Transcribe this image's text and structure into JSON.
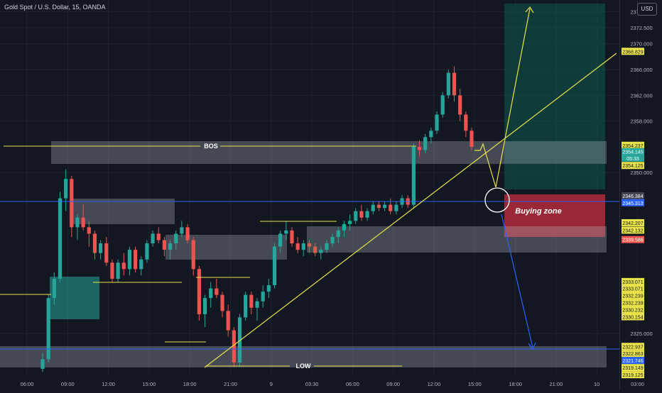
{
  "header": {
    "symbol_title": "Gold Spot / U.S. Dollar, 15, OANDA",
    "currency": "USD"
  },
  "colors": {
    "background": "#131722",
    "grid": "#1f2330",
    "candle_up": "#26a69a",
    "candle_down": "#ef5350",
    "zone_gray": "#b2b5be",
    "annotation_yellow": "#e8e34a",
    "annotation_blue": "#2962ff",
    "target_zone": "#0d5b50",
    "buying_zone": "#b22a3a"
  },
  "chart_data": {
    "type": "candlestick",
    "instrument": "Gold Spot / U.S. Dollar",
    "timeframe": "15",
    "source": "OANDA",
    "ylim": [
      2318.4,
      2376.8
    ],
    "y_ticks": [
      2375.0,
      2372.5,
      2370.0,
      2366.0,
      2362.0,
      2358.0,
      2350.0,
      2325.0
    ],
    "x_ticks": [
      "06:00",
      "09:00",
      "12:00",
      "15:00",
      "18:00",
      "21:00",
      "9",
      "03:30",
      "06:00",
      "09:00",
      "12:00",
      "15:00",
      "18:00",
      "21:00",
      "10",
      "03:00"
    ],
    "candles": [
      [
        2319.5,
        2322.0,
        2319.0,
        2321.0
      ],
      [
        2321.0,
        2331.0,
        2320.5,
        2330.5
      ],
      [
        2330.5,
        2334.5,
        2329.5,
        2333.5
      ],
      [
        2333.5,
        2347.0,
        2333.0,
        2346.0
      ],
      [
        2346.0,
        2350.5,
        2344.0,
        2349.0
      ],
      [
        2349.0,
        2349.5,
        2340.0,
        2341.5
      ],
      [
        2341.5,
        2343.5,
        2339.5,
        2343.0
      ],
      [
        2343.0,
        2345.0,
        2341.0,
        2341.5
      ],
      [
        2341.5,
        2342.5,
        2338.5,
        2340.5
      ],
      [
        2340.5,
        2341.0,
        2336.5,
        2337.5
      ],
      [
        2337.5,
        2339.5,
        2336.5,
        2339.0
      ],
      [
        2339.0,
        2340.0,
        2335.5,
        2336.0
      ],
      [
        2336.0,
        2336.5,
        2333.0,
        2333.5
      ],
      [
        2333.5,
        2336.5,
        2333.0,
        2336.0
      ],
      [
        2336.0,
        2337.5,
        2334.0,
        2335.0
      ],
      [
        2335.0,
        2338.5,
        2334.0,
        2338.0
      ],
      [
        2338.0,
        2338.5,
        2334.5,
        2335.0
      ],
      [
        2335.0,
        2337.0,
        2334.0,
        2336.5
      ],
      [
        2336.5,
        2339.5,
        2336.0,
        2339.0
      ],
      [
        2339.0,
        2341.0,
        2338.5,
        2340.5
      ],
      [
        2340.5,
        2341.5,
        2339.0,
        2339.5
      ],
      [
        2339.5,
        2340.0,
        2337.0,
        2338.0
      ],
      [
        2338.0,
        2339.5,
        2336.5,
        2339.0
      ],
      [
        2339.0,
        2341.0,
        2338.0,
        2340.5
      ],
      [
        2340.5,
        2342.5,
        2340.0,
        2341.5
      ],
      [
        2341.5,
        2342.0,
        2339.0,
        2339.5
      ],
      [
        2339.5,
        2340.0,
        2334.0,
        2335.0
      ],
      [
        2335.0,
        2335.5,
        2327.0,
        2328.0
      ],
      [
        2328.0,
        2331.0,
        2326.0,
        2330.5
      ],
      [
        2330.5,
        2333.0,
        2329.0,
        2332.0
      ],
      [
        2332.0,
        2333.5,
        2330.5,
        2331.0
      ],
      [
        2331.0,
        2331.5,
        2327.5,
        2328.5
      ],
      [
        2328.5,
        2329.5,
        2324.5,
        2325.5
      ],
      [
        2325.5,
        2326.0,
        2320.0,
        2320.5
      ],
      [
        2320.5,
        2328.0,
        2320.0,
        2327.5
      ],
      [
        2327.5,
        2331.5,
        2327.0,
        2331.0
      ],
      [
        2331.0,
        2331.5,
        2328.0,
        2329.0
      ],
      [
        2329.0,
        2330.5,
        2327.0,
        2330.0
      ],
      [
        2330.0,
        2332.5,
        2329.0,
        2331.5
      ],
      [
        2331.5,
        2333.5,
        2330.5,
        2332.5
      ],
      [
        2332.5,
        2339.0,
        2332.0,
        2338.5
      ],
      [
        2338.5,
        2341.0,
        2337.5,
        2340.5
      ],
      [
        2340.5,
        2342.5,
        2339.5,
        2341.0
      ],
      [
        2341.0,
        2341.5,
        2338.5,
        2339.0
      ],
      [
        2339.0,
        2340.0,
        2337.5,
        2338.0
      ],
      [
        2338.0,
        2339.5,
        2337.0,
        2339.0
      ],
      [
        2339.0,
        2339.5,
        2337.5,
        2338.5
      ],
      [
        2338.5,
        2339.0,
        2337.0,
        2337.5
      ],
      [
        2337.5,
        2338.5,
        2336.5,
        2338.0
      ],
      [
        2338.0,
        2339.5,
        2337.5,
        2339.0
      ],
      [
        2339.0,
        2340.5,
        2338.5,
        2340.0
      ],
      [
        2340.0,
        2341.5,
        2339.0,
        2341.0
      ],
      [
        2341.0,
        2342.5,
        2340.0,
        2342.0
      ],
      [
        2342.0,
        2343.5,
        2341.0,
        2342.5
      ],
      [
        2342.5,
        2344.5,
        2342.0,
        2344.0
      ],
      [
        2344.0,
        2345.0,
        2342.5,
        2343.0
      ],
      [
        2343.0,
        2344.5,
        2342.5,
        2344.0
      ],
      [
        2344.0,
        2345.5,
        2343.5,
        2345.0
      ],
      [
        2345.0,
        2345.5,
        2344.0,
        2344.5
      ],
      [
        2344.5,
        2345.5,
        2344.0,
        2345.0
      ],
      [
        2345.0,
        2346.0,
        2343.5,
        2344.0
      ],
      [
        2344.0,
        2345.5,
        2343.5,
        2345.0
      ],
      [
        2345.0,
        2346.5,
        2344.5,
        2346.0
      ],
      [
        2346.0,
        2346.5,
        2344.5,
        2345.0
      ],
      [
        2345.0,
        2354.5,
        2344.5,
        2354.0
      ],
      [
        2354.0,
        2355.0,
        2352.5,
        2353.5
      ],
      [
        2353.5,
        2356.0,
        2353.0,
        2355.5
      ],
      [
        2355.5,
        2357.0,
        2354.5,
        2356.5
      ],
      [
        2356.5,
        2359.5,
        2356.0,
        2359.0
      ],
      [
        2359.0,
        2362.5,
        2358.5,
        2362.0
      ],
      [
        2362.0,
        2366.0,
        2361.5,
        2365.5
      ],
      [
        2365.5,
        2366.5,
        2361.0,
        2362.0
      ],
      [
        2362.0,
        2363.0,
        2358.0,
        2359.0
      ],
      [
        2359.0,
        2359.5,
        2355.5,
        2356.5
      ],
      [
        2356.5,
        2357.0,
        2353.5,
        2354.0
      ]
    ]
  },
  "price_labels": [
    {
      "text": "2368.829",
      "price": 2368.829,
      "bg": "#e8e34a",
      "fg": "#131722"
    },
    {
      "text": "2354.237",
      "price": 2354.237,
      "bg": "#e8e34a",
      "fg": "#131722"
    },
    {
      "text": "2354.145",
      "price": 2353.25,
      "bg": "#26a69a",
      "fg": "#ffffff"
    },
    {
      "text": "05:33",
      "price": 2352.25,
      "bg": "#26a69a",
      "fg": "#ffffff"
    },
    {
      "text": "2354.125",
      "price": 2351.1,
      "bg": "#e8e34a",
      "fg": "#131722"
    },
    {
      "text": "2346.384",
      "price": 2346.384,
      "bg": "#434651",
      "fg": "#ffffff"
    },
    {
      "text": "2345.313",
      "price": 2345.313,
      "bg": "#2962ff",
      "fg": "#ffffff"
    },
    {
      "text": "2342.207",
      "price": 2342.207,
      "bg": "#e8e34a",
      "fg": "#131722"
    },
    {
      "text": "2342.132",
      "price": 2341.05,
      "bg": "#e8e34a",
      "fg": "#131722"
    },
    {
      "text": "2339.586",
      "price": 2339.586,
      "bg": "#ef5350",
      "fg": "#ffffff"
    },
    {
      "text": "2333.071",
      "price": 2333.071,
      "bg": "#e8e34a",
      "fg": "#131722"
    },
    {
      "text": "2333.071",
      "price": 2332.0,
      "bg": "#e8e34a",
      "fg": "#131722"
    },
    {
      "text": "2332.239",
      "price": 2330.9,
      "bg": "#e8e34a",
      "fg": "#131722"
    },
    {
      "text": "2332.239",
      "price": 2329.8,
      "bg": "#e8e34a",
      "fg": "#131722"
    },
    {
      "text": "2330.232",
      "price": 2328.7,
      "bg": "#e8e34a",
      "fg": "#131722"
    },
    {
      "text": "2330.154",
      "price": 2327.6,
      "bg": "#e8e34a",
      "fg": "#131722"
    },
    {
      "text": "2322.937",
      "price": 2323.0,
      "bg": "#e8e34a",
      "fg": "#131722"
    },
    {
      "text": "2322.863",
      "price": 2321.9,
      "bg": "#e8e34a",
      "fg": "#131722"
    },
    {
      "text": "2321.746",
      "price": 2320.8,
      "bg": "#2962ff",
      "fg": "#ffffff"
    },
    {
      "text": "2319.149",
      "price": 2319.7,
      "bg": "#e8e34a",
      "fg": "#131722"
    },
    {
      "text": "2319.125",
      "price": 2318.6,
      "bg": "#e8e34a",
      "fg": "#131722"
    }
  ],
  "annotations": {
    "bos_label": "BOS",
    "low_label": "LOW",
    "buying_zone_label": "Buying zone"
  }
}
